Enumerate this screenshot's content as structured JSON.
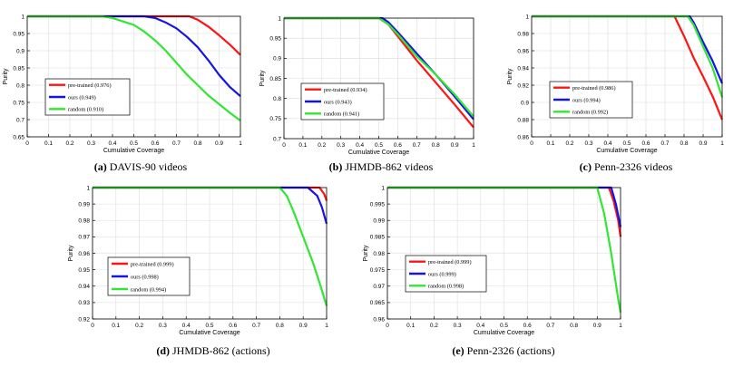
{
  "figure_title": "Purity vs. cumulative coverage",
  "colors": {
    "pretrained": "#ff1414",
    "ours": "#1414e6",
    "random": "#32e632"
  },
  "chart_data": [
    {
      "type": "line",
      "caption_label": "(a)",
      "caption_text": "DAVIS-90 videos",
      "xlabel": "Cumulative Coverage",
      "ylabel": "Purity",
      "xlim": [
        0,
        1
      ],
      "ylim": [
        0.65,
        1
      ],
      "xticks": [
        "0",
        "0.1",
        "0.2",
        "0.3",
        "0.4",
        "0.5",
        "0.6",
        "0.7",
        "0.8",
        "0.9",
        "1"
      ],
      "yticks": [
        "0.65",
        "0.7",
        "0.75",
        "0.8",
        "0.85",
        "0.9",
        "0.95",
        "1"
      ],
      "ytick_values": [
        0.65,
        0.7,
        0.75,
        0.8,
        0.85,
        0.9,
        0.95,
        1
      ],
      "grid": true,
      "legend_position": "bottom-left",
      "series": [
        {
          "name": "pre-trained (0.976)",
          "color_key": "pretrained",
          "x": [
            0,
            0.76,
            0.8,
            0.85,
            0.9,
            0.95,
            1
          ],
          "y": [
            1,
            1,
            0.99,
            0.97,
            0.945,
            0.918,
            0.888
          ]
        },
        {
          "name": "ours (0.949)",
          "color_key": "ours",
          "x": [
            0,
            0.55,
            0.6,
            0.65,
            0.7,
            0.75,
            0.8,
            0.85,
            0.9,
            0.95,
            1
          ],
          "y": [
            1,
            1,
            0.995,
            0.982,
            0.965,
            0.94,
            0.91,
            0.872,
            0.83,
            0.795,
            0.768
          ]
        },
        {
          "name": "random (0.910)",
          "color_key": "random",
          "x": [
            0,
            0.35,
            0.4,
            0.45,
            0.5,
            0.55,
            0.6,
            0.65,
            0.7,
            0.75,
            0.8,
            0.85,
            0.9,
            0.95,
            1
          ],
          "y": [
            1,
            1,
            0.995,
            0.985,
            0.975,
            0.955,
            0.93,
            0.9,
            0.865,
            0.83,
            0.8,
            0.77,
            0.745,
            0.72,
            0.697
          ]
        }
      ]
    },
    {
      "type": "line",
      "caption_label": "(b)",
      "caption_text": "JHMDB-862 videos",
      "xlabel": "Cumulative Coverage",
      "ylabel": "Purity",
      "xlim": [
        0,
        1
      ],
      "ylim": [
        0.7,
        1
      ],
      "xticks": [
        "0",
        "0.1",
        "0.2",
        "0.3",
        "0.4",
        "0.5",
        "0.6",
        "0.7",
        "0.8",
        "0.9",
        "1"
      ],
      "yticks": [
        "0.7",
        "0.75",
        "0.8",
        "0.85",
        "0.9",
        "0.95",
        "1"
      ],
      "ytick_values": [
        0.7,
        0.75,
        0.8,
        0.85,
        0.9,
        0.95,
        1
      ],
      "grid": true,
      "legend_position": "bottom-left",
      "series": [
        {
          "name": "pre-trained (0.934)",
          "color_key": "pretrained",
          "x": [
            0,
            0.5,
            0.55,
            0.6,
            0.7,
            0.8,
            0.9,
            1
          ],
          "y": [
            1,
            1,
            0.985,
            0.955,
            0.895,
            0.84,
            0.785,
            0.728
          ]
        },
        {
          "name": "ours (0.943)",
          "color_key": "ours",
          "x": [
            0,
            0.52,
            0.55,
            0.6,
            0.7,
            0.8,
            0.9,
            1
          ],
          "y": [
            1,
            1,
            0.99,
            0.965,
            0.912,
            0.86,
            0.805,
            0.748
          ]
        },
        {
          "name": "random (0.941)",
          "color_key": "random",
          "x": [
            0,
            0.5,
            0.55,
            0.6,
            0.7,
            0.8,
            0.9,
            1
          ],
          "y": [
            1,
            1,
            0.985,
            0.96,
            0.905,
            0.86,
            0.81,
            0.755
          ]
        }
      ]
    },
    {
      "type": "line",
      "caption_label": "(c)",
      "caption_text": "Penn-2326 videos",
      "xlabel": "Cumulative Coverage",
      "ylabel": "Purity",
      "xlim": [
        0,
        1
      ],
      "ylim": [
        0.86,
        1
      ],
      "xticks": [
        "0",
        "0.1",
        "0.2",
        "0.3",
        "0.4",
        "0.5",
        "0.6",
        "0.7",
        "0.8",
        "0.9",
        "1"
      ],
      "yticks": [
        "0.86",
        "0.88",
        "0.9",
        "0.92",
        "0.94",
        "0.96",
        "0.98",
        "1"
      ],
      "ytick_values": [
        0.86,
        0.88,
        0.9,
        0.92,
        0.94,
        0.96,
        0.98,
        1
      ],
      "grid": true,
      "legend_position": "bottom-left",
      "series": [
        {
          "name": "pre-trained (0.986)",
          "color_key": "pretrained",
          "x": [
            0,
            0.75,
            0.8,
            0.85,
            0.9,
            0.95,
            1
          ],
          "y": [
            1,
            1,
            0.977,
            0.952,
            0.93,
            0.907,
            0.88
          ]
        },
        {
          "name": "ours (0.994)",
          "color_key": "ours",
          "x": [
            0,
            0.83,
            0.85,
            0.9,
            0.95,
            1
          ],
          "y": [
            1,
            1,
            0.993,
            0.97,
            0.948,
            0.922
          ]
        },
        {
          "name": "random (0.992)",
          "color_key": "random",
          "x": [
            0,
            0.82,
            0.85,
            0.9,
            0.95,
            1
          ],
          "y": [
            1,
            1,
            0.99,
            0.965,
            0.94,
            0.906
          ]
        }
      ]
    },
    {
      "type": "line",
      "caption_label": "(d)",
      "caption_text": "JHMDB-862 (actions)",
      "xlabel": "Cumulative Coverage",
      "ylabel": "Purity",
      "xlim": [
        0,
        1
      ],
      "ylim": [
        0.92,
        1
      ],
      "xticks": [
        "0",
        "0.1",
        "0.2",
        "0.3",
        "0.4",
        "0.5",
        "0.6",
        "0.7",
        "0.8",
        "0.9",
        "1"
      ],
      "yticks": [
        "0.92",
        "0.93",
        "0.94",
        "0.95",
        "0.96",
        "0.97",
        "0.98",
        "0.99",
        "1"
      ],
      "ytick_values": [
        0.92,
        0.93,
        0.94,
        0.95,
        0.96,
        0.97,
        0.98,
        0.99,
        1
      ],
      "grid": true,
      "legend_position": "bottom-left",
      "series": [
        {
          "name": "pre-trained (0.999)",
          "color_key": "pretrained",
          "x": [
            0,
            0.97,
            0.99,
            1
          ],
          "y": [
            1,
            1,
            0.996,
            0.992
          ]
        },
        {
          "name": "ours (0.998)",
          "color_key": "ours",
          "x": [
            0,
            0.92,
            0.96,
            0.98,
            1
          ],
          "y": [
            1,
            1,
            0.995,
            0.988,
            0.978
          ]
        },
        {
          "name": "random (0.994)",
          "color_key": "random",
          "x": [
            0,
            0.8,
            0.83,
            0.86,
            0.9,
            0.94,
            0.97,
            1
          ],
          "y": [
            1,
            1,
            0.995,
            0.985,
            0.97,
            0.955,
            0.942,
            0.928
          ]
        }
      ]
    },
    {
      "type": "line",
      "caption_label": "(e)",
      "caption_text": "Penn-2326 (actions)",
      "xlabel": "Cumulative Coverage",
      "ylabel": "Purity",
      "xlim": [
        0,
        1
      ],
      "ylim": [
        0.96,
        1
      ],
      "xticks": [
        "0",
        "0.1",
        "0.2",
        "0.3",
        "0.4",
        "0.5",
        "0.6",
        "0.7",
        "0.8",
        "0.9",
        "1"
      ],
      "yticks": [
        "0.96",
        "0.965",
        "0.97",
        "0.975",
        "0.98",
        "0.985",
        "0.99",
        "0.995",
        "1"
      ],
      "ytick_values": [
        0.96,
        0.965,
        0.97,
        0.975,
        0.98,
        0.985,
        0.99,
        0.995,
        1
      ],
      "grid": true,
      "legend_position": "bottom-left",
      "series": [
        {
          "name": "pre-trained (0.999)",
          "color_key": "pretrained",
          "x": [
            0,
            0.95,
            0.97,
            0.99,
            1
          ],
          "y": [
            1,
            1,
            0.996,
            0.99,
            0.985
          ]
        },
        {
          "name": "ours (0.999)",
          "color_key": "ours",
          "x": [
            0,
            0.96,
            0.98,
            1
          ],
          "y": [
            1,
            1,
            0.995,
            0.988
          ]
        },
        {
          "name": "random (0.998)",
          "color_key": "random",
          "x": [
            0,
            0.9,
            0.93,
            0.96,
            0.99,
            1
          ],
          "y": [
            1,
            1,
            0.992,
            0.98,
            0.966,
            0.962
          ]
        }
      ]
    }
  ]
}
